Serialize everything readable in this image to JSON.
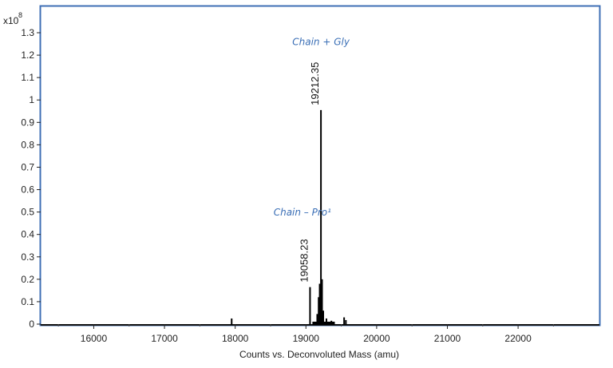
{
  "chart_data": {
    "type": "line",
    "xlabel": "Counts vs. Deconvoluted Mass (amu)",
    "ylabel": "",
    "y_multiplier": "x10",
    "y_multiplier_exponent": "8",
    "xlim": [
      15250,
      23150
    ],
    "ylim": [
      0,
      1.37
    ],
    "x_ticks": [
      "16000",
      "17000",
      "18000",
      "19000",
      "20000",
      "21000",
      "22000"
    ],
    "y_ticks": [
      "0",
      "0.1",
      "0.2",
      "0.3",
      "0.4",
      "0.5",
      "0.6",
      "0.7",
      "0.8",
      "0.9",
      "1",
      "1.1",
      "1.2",
      "1.3"
    ],
    "peaks": [
      {
        "x": 17950,
        "y": 0.025
      },
      {
        "x": 19058.23,
        "y": 0.165
      },
      {
        "x": 19160,
        "y": 0.045
      },
      {
        "x": 19180,
        "y": 0.12
      },
      {
        "x": 19195,
        "y": 0.18
      },
      {
        "x": 19212.35,
        "y": 0.955
      },
      {
        "x": 19228,
        "y": 0.2
      },
      {
        "x": 19245,
        "y": 0.06
      },
      {
        "x": 19290,
        "y": 0.025
      },
      {
        "x": 19360,
        "y": 0.015
      },
      {
        "x": 19540,
        "y": 0.03
      },
      {
        "x": 19565,
        "y": 0.018
      }
    ],
    "peak_labels": [
      {
        "x": 19058.23,
        "y": 0.165,
        "text": "19058.23"
      },
      {
        "x": 19212.35,
        "y": 0.955,
        "text": "19212.35"
      }
    ],
    "annotations": [
      {
        "text": "Chain + Gly",
        "x": 19212.35,
        "y": 1.245
      },
      {
        "text": "Chain – Pro¹",
        "x": 18950,
        "y": 0.485
      }
    ],
    "grid": false,
    "border_color": "#3f6fb5"
  }
}
